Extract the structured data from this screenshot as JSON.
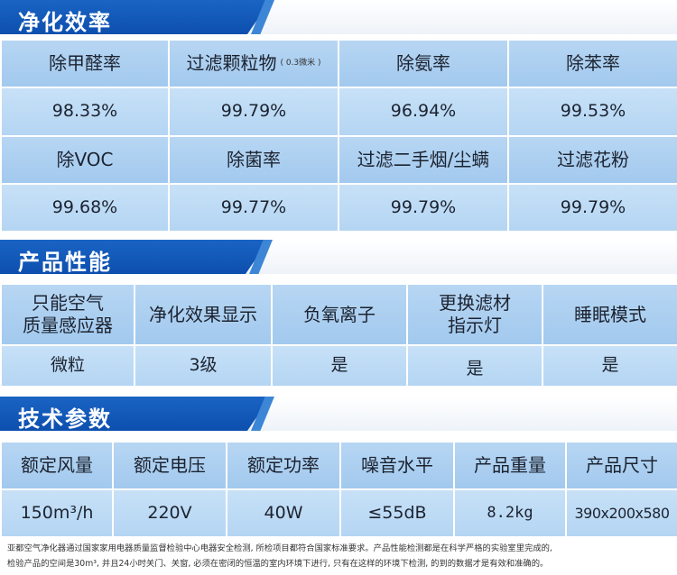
{
  "sections": {
    "purification": {
      "title": "净化效率",
      "row1_headers": [
        "除甲醛率",
        "过滤颗粒物",
        "除氨率",
        "除苯率"
      ],
      "row1_header_note": "( 0.3微米 )",
      "row1_values": [
        "98.33%",
        "99.79%",
        "96.94%",
        "99.53%"
      ],
      "row2_headers": [
        "除VOC",
        "除菌率",
        "过滤二手烟/尘螨",
        "过滤花粉"
      ],
      "row2_values": [
        "99.68%",
        "99.77%",
        "99.79%",
        "99.79%"
      ]
    },
    "performance": {
      "title": "产品性能",
      "headers": [
        "只能空气\n质量感应器",
        "净化效果显示",
        "负氧离子",
        "更换滤材\n指示灯",
        "睡眠模式"
      ],
      "values": [
        "微粒",
        "3级",
        "是",
        "是",
        "是"
      ]
    },
    "specs": {
      "title": "技术参数",
      "headers": [
        "额定风量",
        "额定电压",
        "额定功率",
        "噪音水平",
        "产品重量",
        "产品尺寸"
      ],
      "values": [
        "150m³/h",
        "220V",
        "40W",
        "≤55dB",
        "8.2kg",
        "390x200x580"
      ]
    }
  },
  "footnote": {
    "line1": "亚都空气净化器通过国家家用电器质量监督检验中心电器安全检测, 所检项目都符合国家标准要求。产品性能检测都是在科学严格的实验室里完成的,",
    "line2": "检验产品的空间是30m³, 并且24小时关门、关窗, 必须在密闭的恒温的室内环境下进行, 只有在这样的环境下检测, 的到的数据才是有效和准确的。"
  }
}
